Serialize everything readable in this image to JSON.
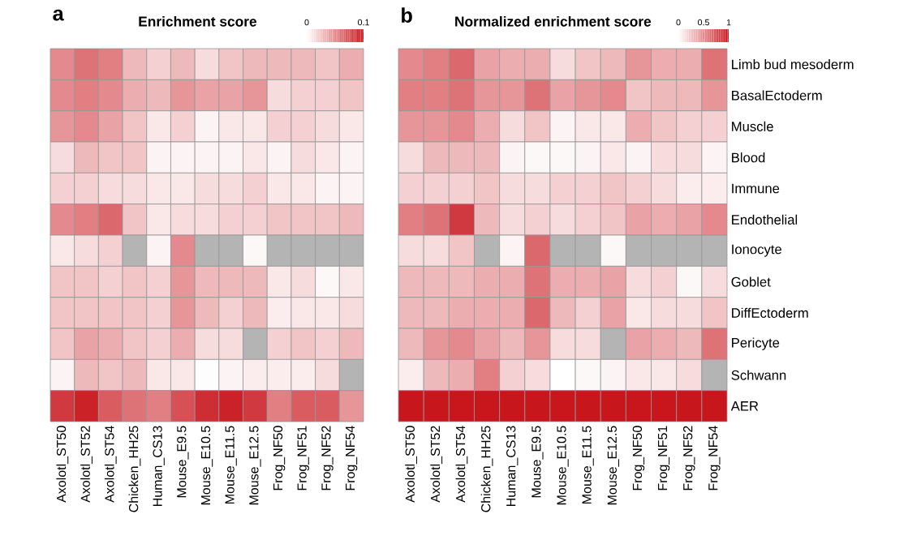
{
  "chart_data": [
    {
      "type": "heatmap",
      "title": "Enrichment score",
      "annotations": [
        "a"
      ],
      "categories": [
        "Axolotl_ST50",
        "Axolotl_ST52",
        "Axolotl_ST54",
        "Chicken_HH25",
        "Human_CS13",
        "Mouse_E9.5",
        "Mouse_E10.5",
        "Mouse_E11.5",
        "Mouse_E12.5",
        "Frog_NF50",
        "Frog_NF51",
        "Frog_NF52",
        "Frog_NF54"
      ],
      "y_categories": [
        null,
        null,
        null,
        null,
        null,
        null,
        null,
        null,
        null,
        null,
        null,
        null
      ],
      "cells": [
        [
          0.05,
          0.06,
          0.055,
          0.03,
          0.02,
          0.03,
          0.015,
          0.025,
          0.03,
          0.03,
          0.03,
          0.025,
          0.035
        ],
        [
          0.05,
          0.055,
          0.05,
          0.035,
          0.03,
          0.045,
          0.04,
          0.04,
          0.045,
          0.015,
          0.02,
          0.02,
          0.025
        ],
        [
          0.045,
          0.05,
          0.04,
          0.025,
          0.01,
          0.02,
          0.005,
          0.01,
          0.01,
          0.02,
          0.02,
          0.015,
          0.01
        ],
        [
          0.015,
          0.03,
          0.025,
          0.025,
          0.005,
          0.005,
          0.005,
          0.005,
          0.01,
          0.005,
          0.015,
          0.01,
          0.005
        ],
        [
          0.02,
          0.02,
          0.015,
          0.015,
          0.01,
          0.01,
          0.015,
          0.015,
          0.02,
          0.01,
          0.01,
          0.005,
          0.005
        ],
        [
          0.05,
          0.055,
          0.065,
          0.025,
          0.01,
          0.015,
          0.015,
          0.02,
          0.02,
          0.025,
          0.025,
          0.025,
          0.03
        ],
        [
          0.01,
          0.015,
          0.02,
          null,
          0.005,
          0.05,
          null,
          null,
          0.003,
          null,
          null,
          null,
          null
        ],
        [
          0.025,
          0.025,
          0.02,
          0.025,
          0.02,
          0.045,
          0.03,
          0.03,
          0.03,
          0.01,
          0.015,
          0.003,
          0.01
        ],
        [
          0.025,
          0.025,
          0.025,
          0.025,
          0.02,
          0.045,
          0.03,
          0.02,
          0.03,
          0.008,
          0.01,
          0.01,
          0.015
        ],
        [
          0.025,
          0.04,
          0.035,
          0.025,
          0.02,
          0.035,
          0.015,
          0.015,
          null,
          0.02,
          0.025,
          0.02,
          0.03
        ],
        [
          0.005,
          0.03,
          0.025,
          0.03,
          0.01,
          0.01,
          0.001,
          0.005,
          0.008,
          0.008,
          0.008,
          0.015,
          null
        ],
        [
          0.085,
          0.095,
          0.07,
          0.06,
          0.055,
          0.075,
          0.09,
          0.095,
          0.085,
          0.055,
          0.07,
          0.07,
          0.045
        ]
      ],
      "clim": [
        0,
        0.1
      ],
      "cticks": [
        0,
        0.1
      ],
      "colors": [
        "#ffffff",
        "#c8161d"
      ]
    },
    {
      "type": "heatmap",
      "title": "Normalized enrichment score",
      "annotations": [
        "b"
      ],
      "categories": [
        "Axolotl_ST50",
        "Axolotl_ST52",
        "Axolotl_ST54",
        "Chicken_HH25",
        "Human_CS13",
        "Mouse_E9.5",
        "Mouse_E10.5",
        "Mouse_E11.5",
        "Mouse_E12.5",
        "Frog_NF50",
        "Frog_NF51",
        "Frog_NF52",
        "Frog_NF54"
      ],
      "y_categories": [
        "Limb bud mesoderm",
        "BasalEctoderm",
        "Muscle",
        "Blood",
        "Immune",
        "Endothelial",
        "Ionocyte",
        "Goblet",
        "DiffEctoderm",
        "Pericyte",
        "Schwann",
        "AER"
      ],
      "cells": [
        [
          0.5,
          0.55,
          0.65,
          0.4,
          0.35,
          0.35,
          0.15,
          0.25,
          0.3,
          0.45,
          0.35,
          0.35,
          0.6
        ],
        [
          0.55,
          0.55,
          0.6,
          0.45,
          0.45,
          0.6,
          0.4,
          0.45,
          0.5,
          0.25,
          0.3,
          0.3,
          0.45
        ],
        [
          0.45,
          0.45,
          0.5,
          0.35,
          0.15,
          0.25,
          0.05,
          0.1,
          0.1,
          0.35,
          0.25,
          0.2,
          0.2
        ],
        [
          0.15,
          0.3,
          0.3,
          0.3,
          0.05,
          0.03,
          0.03,
          0.05,
          0.1,
          0.05,
          0.15,
          0.15,
          0.05
        ],
        [
          0.2,
          0.2,
          0.2,
          0.25,
          0.15,
          0.15,
          0.2,
          0.2,
          0.25,
          0.2,
          0.15,
          0.08,
          0.08
        ],
        [
          0.55,
          0.6,
          0.85,
          0.3,
          0.15,
          0.2,
          0.15,
          0.2,
          0.25,
          0.4,
          0.35,
          0.4,
          0.5
        ],
        [
          0.15,
          0.15,
          0.25,
          null,
          0.05,
          0.65,
          null,
          null,
          0.03,
          null,
          null,
          null,
          null
        ],
        [
          0.3,
          0.3,
          0.3,
          0.35,
          0.35,
          0.6,
          0.35,
          0.35,
          0.4,
          0.15,
          0.2,
          0.03,
          0.15
        ],
        [
          0.3,
          0.3,
          0.35,
          0.35,
          0.35,
          0.65,
          0.3,
          0.2,
          0.4,
          0.1,
          0.15,
          0.15,
          0.25
        ],
        [
          0.3,
          0.45,
          0.5,
          0.4,
          0.3,
          0.45,
          0.15,
          0.15,
          null,
          0.4,
          0.35,
          0.3,
          0.6
        ],
        [
          0.08,
          0.3,
          0.35,
          0.55,
          0.2,
          0.15,
          0,
          0.03,
          0.05,
          0.1,
          0.1,
          0.15,
          null
        ],
        [
          1,
          1,
          1,
          1,
          1,
          1,
          1,
          1,
          1,
          1,
          1,
          1,
          1
        ]
      ],
      "clim": [
        0,
        1
      ],
      "cticks": [
        0,
        0.5,
        1
      ],
      "colors": [
        "#ffffff",
        "#c8161d"
      ]
    }
  ]
}
